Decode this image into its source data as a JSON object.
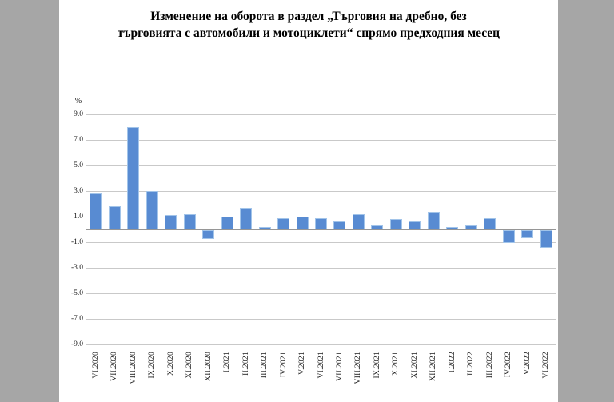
{
  "colors": {
    "surround": "#A6A6A6",
    "panel_bg": "#FFFFFF"
  },
  "title_lines": [
    "Изменение на оборота в раздел „Търговия на дребно, без",
    "търговията с автомобили и мотоциклети“ спрямо предходния месец"
  ],
  "chart_data": {
    "type": "bar",
    "title": "Изменение на оборота в раздел „Търговия на дребно, без търговията с автомобили и мотоциклети“ спрямо предходния месец",
    "unit_label": "%",
    "xlabel": "",
    "ylabel": "%",
    "legend": "none",
    "grid": true,
    "ylim": [
      -9,
      9
    ],
    "ytick_step": 2,
    "yticks": [
      9,
      7,
      5,
      3,
      1,
      -1,
      -3,
      -5,
      -7,
      -9
    ],
    "ytick_labels": [
      "9.0",
      "7.0",
      "5.0",
      "3.0",
      "1.0",
      "-1.0",
      "-3.0",
      "-5.0",
      "-7.0",
      "-9.0"
    ],
    "categories": [
      "VI.2020",
      "VII.2020",
      "VIII.2020",
      "IX.2020",
      "X.2020",
      "XI.2020",
      "XII.2020",
      "I.2021",
      "II.2021",
      "III.2021",
      "IV.2021",
      "V.2021",
      "VI.2021",
      "VII.2021",
      "VIII.2021",
      "IX.2021",
      "X.2021",
      "XI.2021",
      "XII.2021",
      "I.2022",
      "II.2022",
      "III.2022",
      "IV.2022",
      "V.2022",
      "VI.2022"
    ],
    "values": [
      2.8,
      1.8,
      8.0,
      3.0,
      1.1,
      1.2,
      -0.7,
      1.0,
      1.7,
      0.2,
      0.9,
      1.0,
      0.9,
      0.6,
      1.2,
      0.3,
      0.8,
      0.6,
      1.4,
      0.2,
      0.3,
      0.9,
      -1.0,
      -0.6,
      -1.4
    ],
    "series_color": "#588BD2",
    "bar_border_color": "#A2C4E9",
    "gridline_color": "#C9C9C9",
    "axis_color": "#969696"
  }
}
